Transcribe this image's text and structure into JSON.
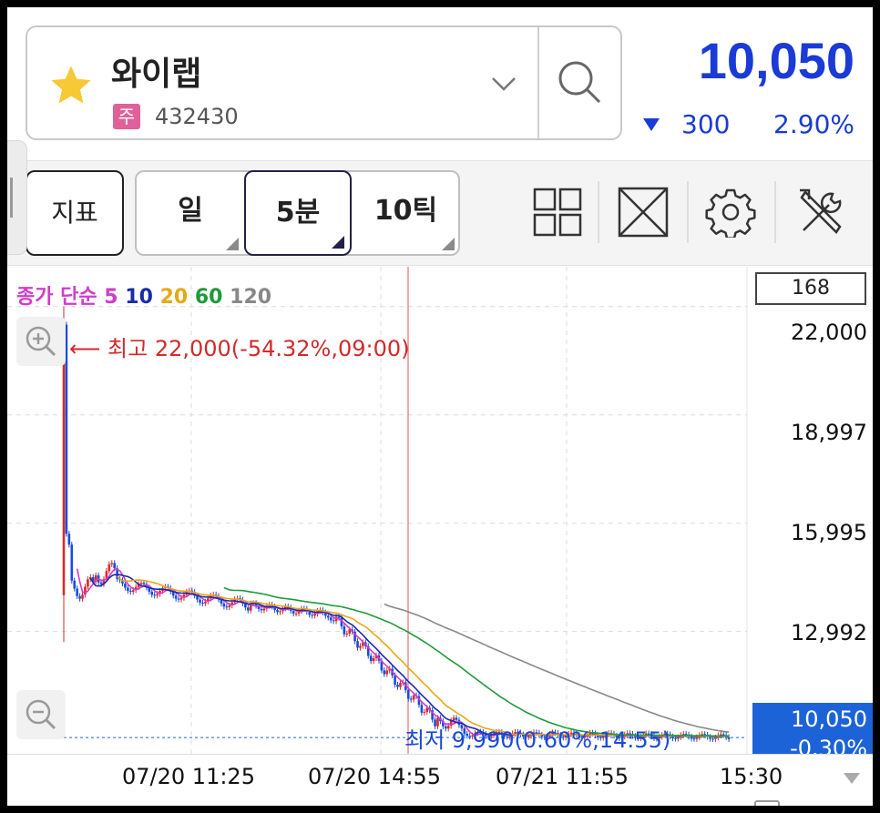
{
  "stock": {
    "name": "와이랩",
    "market_badge": "주",
    "code": "432430",
    "price": "10,050",
    "change": "300",
    "change_rate": "2.90%",
    "direction": "down",
    "favorite": true
  },
  "toolbar": {
    "indicator_label": "지표",
    "periods": [
      {
        "label": "일",
        "selected": false
      },
      {
        "label": "5분",
        "selected": true
      },
      {
        "label": "10틱",
        "selected": false
      }
    ],
    "icons": [
      "layout-grid-icon",
      "fullscreen-icon",
      "settings-gear-icon",
      "tools-icon"
    ]
  },
  "chart": {
    "ma_legend": {
      "prefix": "종가 단순",
      "periods": [
        {
          "label": "5",
          "color": "#d23cc8"
        },
        {
          "label": "10",
          "color": "#1a2ba8"
        },
        {
          "label": "20",
          "color": "#e6a817"
        },
        {
          "label": "60",
          "color": "#1e9a3a"
        },
        {
          "label": "120",
          "color": "#888888"
        }
      ]
    },
    "volume_box": "168",
    "high_label": "최고 22,000(-54.32%,09:00)",
    "low_label": "최저 9,990(0.60%,14:55)",
    "current_price_tag": "10,050",
    "current_rate_tag": "-0.30%"
  },
  "chart_data": {
    "type": "candlestick",
    "y_ticks": [
      "22,000",
      "18,997",
      "15,995",
      "12,992"
    ],
    "x_ticks": [
      "07/20 11:25",
      "07/20 14:55",
      "07/21 11:55",
      "15:30"
    ],
    "high": 22000,
    "low": 9990,
    "last": 10050,
    "ylim": [
      9600,
      22600
    ],
    "colors": {
      "up": "#d42a2a",
      "down": "#1a4bd8"
    }
  }
}
